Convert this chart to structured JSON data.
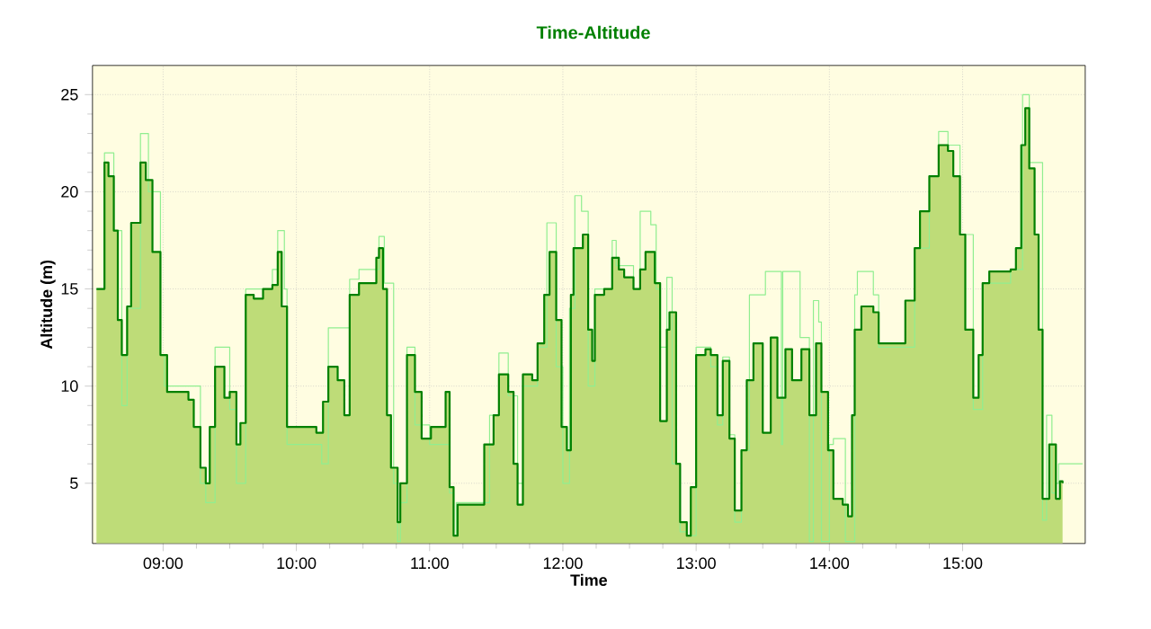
{
  "chart_data": {
    "type": "step",
    "title": "Time-Altitude",
    "xlabel": "Time",
    "ylabel": "Altitude (m)",
    "xlim": [
      8.47,
      15.92
    ],
    "ylim": [
      1.9,
      26.5
    ],
    "xticks": [
      {
        "value": 9,
        "label": "09:00"
      },
      {
        "value": 10,
        "label": "10:00"
      },
      {
        "value": 11,
        "label": "11:00"
      },
      {
        "value": 12,
        "label": "12:00"
      },
      {
        "value": 13,
        "label": "13:00"
      },
      {
        "value": 14,
        "label": "14:00"
      },
      {
        "value": 15,
        "label": "15:00"
      }
    ],
    "yticks": [
      5,
      10,
      15,
      20,
      25
    ],
    "grid": true,
    "series": [
      {
        "type": "area",
        "color": "#bedc78",
        "x": [
          8.5,
          8.56,
          8.59,
          8.63,
          8.66,
          8.69,
          8.73,
          8.76,
          8.83,
          8.87,
          8.92,
          8.98,
          9.03,
          9.19,
          9.23,
          9.28,
          9.32,
          9.35,
          9.39,
          9.46,
          9.5,
          9.55,
          9.58,
          9.62,
          9.68,
          9.75,
          9.82,
          9.86,
          9.89,
          9.93,
          10.15,
          10.2,
          10.24,
          10.31,
          10.36,
          10.4,
          10.47,
          10.56,
          10.6,
          10.62,
          10.65,
          10.68,
          10.71,
          10.76,
          10.78,
          10.83,
          10.89,
          10.94,
          11.01,
          11.12,
          11.15,
          11.18,
          11.21,
          11.36,
          11.41,
          11.48,
          11.52,
          11.59,
          11.63,
          11.66,
          11.7,
          11.77,
          11.81,
          11.86,
          11.9,
          11.95,
          11.99,
          12.03,
          12.06,
          12.08,
          12.15,
          12.19,
          12.22,
          12.24,
          12.31,
          12.37,
          12.42,
          12.46,
          12.53,
          12.58,
          12.62,
          12.66,
          12.69,
          12.73,
          12.78,
          12.8,
          12.85,
          12.88,
          12.93,
          12.96,
          13.0,
          13.07,
          13.11,
          13.16,
          13.2,
          13.25,
          13.29,
          13.34,
          13.38,
          13.43,
          13.5,
          13.56,
          13.61,
          13.67,
          13.72,
          13.79,
          13.85,
          13.9,
          13.94,
          13.99,
          14.03,
          14.1,
          14.14,
          14.17,
          14.19,
          14.24,
          14.33,
          14.37,
          14.53,
          14.57,
          14.64,
          14.68,
          14.75,
          14.82,
          14.89,
          14.93,
          14.98,
          15.02,
          15.08,
          15.12,
          15.15,
          15.2,
          15.36,
          15.4,
          15.44,
          15.47,
          15.5,
          15.54,
          15.57,
          15.6,
          15.65,
          15.7,
          15.73,
          15.75
        ],
        "values": [
          15,
          21.5,
          20.8,
          18,
          13.4,
          11.6,
          14.1,
          18.4,
          21.5,
          20.6,
          16.9,
          11.6,
          9.7,
          9.3,
          7.9,
          5.8,
          5.0,
          7.9,
          11.0,
          9.4,
          9.7,
          7.0,
          8.1,
          14.7,
          14.5,
          15,
          15.2,
          16.9,
          14.1,
          7.9,
          7.6,
          9.2,
          11.0,
          10.3,
          8.5,
          14.7,
          15.3,
          15.3,
          16.6,
          17.1,
          15,
          8.5,
          5.8,
          3,
          5.0,
          11.6,
          9.7,
          7.3,
          7.9,
          9.7,
          4.8,
          2.3,
          3.9,
          3.9,
          7.0,
          8.5,
          10.6,
          9.7,
          6.0,
          3.9,
          10.6,
          10.3,
          12.2,
          14.7,
          16.9,
          13.4,
          7.9,
          6.7,
          14.7,
          17.1,
          17.8,
          12.9,
          11.3,
          14.7,
          15,
          16.6,
          16,
          15.6,
          15,
          16,
          16.9,
          16.9,
          15.3,
          8.2,
          12.9,
          13.8,
          6.0,
          3,
          2.3,
          4.8,
          11.6,
          11.9,
          11.6,
          8.5,
          11.3,
          7.3,
          3.6,
          6.7,
          10.3,
          12.2,
          7.6,
          12.5,
          9.4,
          11.9,
          10.3,
          11.9,
          8.5,
          12.2,
          9.7,
          6.7,
          4.2,
          3.9,
          3.3,
          8.5,
          12.9,
          14.1,
          13.8,
          12.2,
          12.2,
          14.4,
          17.1,
          19.0,
          20.8,
          22.4,
          22.1,
          20.8,
          17.8,
          12.9,
          9.4,
          11.6,
          15.3,
          15.9,
          16.0,
          17.1,
          22.4,
          24.3,
          21.2,
          17.8,
          12.9,
          4.2,
          7.0,
          4.2,
          5.1,
          5.0
        ]
      },
      {
        "color": "#008000",
        "x": [
          8.5,
          8.56,
          8.59,
          8.63,
          8.66,
          8.69,
          8.73,
          8.76,
          8.83,
          8.87,
          8.92,
          8.98,
          9.03,
          9.19,
          9.23,
          9.28,
          9.32,
          9.35,
          9.39,
          9.46,
          9.5,
          9.55,
          9.58,
          9.62,
          9.68,
          9.75,
          9.82,
          9.86,
          9.89,
          9.93,
          10.15,
          10.2,
          10.24,
          10.31,
          10.36,
          10.4,
          10.47,
          10.56,
          10.6,
          10.62,
          10.65,
          10.68,
          10.71,
          10.76,
          10.78,
          10.83,
          10.89,
          10.94,
          11.01,
          11.12,
          11.15,
          11.18,
          11.21,
          11.36,
          11.41,
          11.48,
          11.52,
          11.59,
          11.63,
          11.66,
          11.7,
          11.77,
          11.81,
          11.86,
          11.9,
          11.95,
          11.99,
          12.03,
          12.06,
          12.08,
          12.15,
          12.19,
          12.22,
          12.24,
          12.31,
          12.37,
          12.42,
          12.46,
          12.53,
          12.58,
          12.62,
          12.66,
          12.69,
          12.73,
          12.78,
          12.8,
          12.85,
          12.88,
          12.93,
          12.96,
          13.0,
          13.07,
          13.11,
          13.16,
          13.2,
          13.25,
          13.29,
          13.34,
          13.38,
          13.43,
          13.5,
          13.56,
          13.61,
          13.67,
          13.72,
          13.79,
          13.85,
          13.9,
          13.94,
          13.99,
          14.03,
          14.1,
          14.14,
          14.17,
          14.19,
          14.24,
          14.33,
          14.37,
          14.53,
          14.57,
          14.64,
          14.68,
          14.75,
          14.82,
          14.89,
          14.93,
          14.98,
          15.02,
          15.08,
          15.12,
          15.15,
          15.2,
          15.36,
          15.4,
          15.44,
          15.47,
          15.5,
          15.54,
          15.57,
          15.6,
          15.65,
          15.7,
          15.73,
          15.75
        ],
        "values": [
          15,
          21.5,
          20.8,
          18,
          13.4,
          11.6,
          14.1,
          18.4,
          21.5,
          20.6,
          16.9,
          11.6,
          9.7,
          9.3,
          7.9,
          5.8,
          5.0,
          7.9,
          11.0,
          9.4,
          9.7,
          7.0,
          8.1,
          14.7,
          14.5,
          15,
          15.2,
          16.9,
          14.1,
          7.9,
          7.6,
          9.2,
          11.0,
          10.3,
          8.5,
          14.7,
          15.3,
          15.3,
          16.6,
          17.1,
          15,
          8.5,
          5.8,
          3,
          5.0,
          11.6,
          9.7,
          7.3,
          7.9,
          9.7,
          4.8,
          2.3,
          3.9,
          3.9,
          7.0,
          8.5,
          10.6,
          9.7,
          6.0,
          3.9,
          10.6,
          10.3,
          12.2,
          14.7,
          16.9,
          13.4,
          7.9,
          6.7,
          14.7,
          17.1,
          17.8,
          12.9,
          11.3,
          14.7,
          15,
          16.6,
          16,
          15.6,
          15,
          16,
          16.9,
          16.9,
          15.3,
          8.2,
          12.9,
          13.8,
          6.0,
          3,
          2.3,
          4.8,
          11.6,
          11.9,
          11.6,
          8.5,
          11.3,
          7.3,
          3.6,
          6.7,
          10.3,
          12.2,
          7.6,
          12.5,
          9.4,
          11.9,
          10.3,
          11.9,
          8.5,
          12.2,
          9.7,
          6.7,
          4.2,
          3.9,
          3.3,
          8.5,
          12.9,
          14.1,
          13.8,
          12.2,
          12.2,
          14.4,
          17.1,
          19.0,
          20.8,
          22.4,
          22.1,
          20.8,
          17.8,
          12.9,
          9.4,
          11.6,
          15.3,
          15.9,
          16.0,
          17.1,
          22.4,
          24.3,
          21.2,
          17.8,
          12.9,
          4.2,
          7.0,
          4.2,
          5.1,
          5.0
        ]
      },
      {
        "type": "step",
        "color": "#90ee90",
        "x": [
          8.5,
          8.56,
          8.63,
          8.69,
          8.73,
          8.83,
          8.89,
          8.98,
          9.01,
          9.19,
          9.28,
          9.32,
          9.39,
          9.5,
          9.55,
          9.62,
          9.82,
          9.86,
          9.91,
          9.93,
          10.17,
          10.19,
          10.24,
          10.4,
          10.47,
          10.56,
          10.62,
          10.66,
          10.73,
          10.76,
          10.78,
          10.83,
          10.89,
          11.0,
          11.15,
          11.18,
          11.2,
          11.36,
          11.45,
          11.52,
          11.59,
          11.66,
          11.7,
          11.81,
          11.88,
          11.95,
          12.0,
          12.05,
          12.09,
          12.14,
          12.19,
          12.24,
          12.37,
          12.4,
          12.53,
          12.58,
          12.66,
          12.7,
          12.73,
          12.78,
          12.82,
          12.88,
          12.93,
          13.0,
          13.07,
          13.11,
          13.16,
          13.2,
          13.25,
          13.29,
          13.34,
          13.4,
          13.52,
          13.64,
          13.65,
          13.78,
          13.85,
          13.88,
          13.92,
          13.94,
          14.0,
          14.03,
          14.12,
          14.19,
          14.21,
          14.33,
          14.37,
          14.53,
          14.64,
          14.75,
          14.82,
          14.89,
          14.98,
          15.08,
          15.15,
          15.36,
          15.45,
          15.5,
          15.6,
          15.63,
          15.67,
          15.7,
          15.72,
          15.9
        ],
        "values": [
          15,
          22,
          18,
          9,
          14,
          23,
          20,
          11.6,
          10,
          10,
          5,
          4,
          12,
          8.8,
          5,
          15,
          16,
          18,
          15,
          7,
          7,
          6,
          13,
          15.5,
          16,
          16,
          17.7,
          15.3,
          5,
          2,
          4,
          12,
          8,
          7,
          4.5,
          2.3,
          4,
          4,
          8.5,
          11.7,
          9.5,
          5,
          10,
          12,
          18.4,
          11,
          5,
          14,
          19.8,
          19,
          10,
          15,
          17.5,
          16.2,
          15,
          19,
          18.3,
          15,
          12,
          15.6,
          6,
          2.5,
          2.3,
          12,
          12,
          11,
          8,
          11.5,
          7.5,
          3,
          6.7,
          14.7,
          15.9,
          7,
          15.9,
          12.5,
          2,
          14.4,
          13.3,
          2,
          7,
          7.3,
          2,
          14.7,
          15.9,
          14.7,
          12,
          12,
          17.1,
          20.8,
          23.1,
          22.4,
          17.8,
          8.8,
          15.3,
          16,
          25,
          21.5,
          3.1,
          8.5,
          4.5,
          5,
          6,
          6
        ]
      }
    ]
  }
}
